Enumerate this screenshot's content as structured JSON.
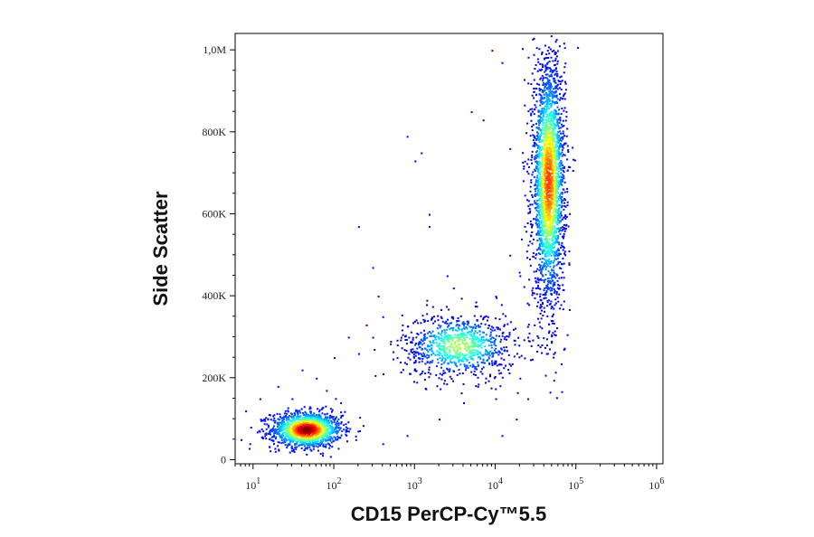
{
  "chart_data": {
    "type": "scatter",
    "title": "",
    "xlabel": "CD15 PerCP-Cy™5.5",
    "ylabel": "Side Scatter",
    "x_scale": "log",
    "x_range": [
      6,
      1200000
    ],
    "y_range": [
      -10000,
      1040000
    ],
    "x_ticks": [
      {
        "value": 10,
        "base": "10",
        "exp": "1"
      },
      {
        "value": 100,
        "base": "10",
        "exp": "2"
      },
      {
        "value": 1000,
        "base": "10",
        "exp": "3"
      },
      {
        "value": 10000,
        "base": "10",
        "exp": "4"
      },
      {
        "value": 100000,
        "base": "10",
        "exp": "5"
      },
      {
        "value": 1000000,
        "base": "10",
        "exp": "6"
      }
    ],
    "y_ticks": [
      {
        "value": 0,
        "label": "0"
      },
      {
        "value": 200000,
        "label": "200K"
      },
      {
        "value": 400000,
        "label": "400K"
      },
      {
        "value": 600000,
        "label": "600K"
      },
      {
        "value": 800000,
        "label": "800K"
      },
      {
        "value": 1000000,
        "label": "1,0M"
      }
    ],
    "colormap": "jet-density",
    "populations": [
      {
        "x_center": 45,
        "x_spread_log": 0.22,
        "y_center": 75000,
        "y_spread": 22000,
        "count": 1400
      },
      {
        "x_center": 3500,
        "x_spread_log": 0.35,
        "y_center": 280000,
        "y_spread": 40000,
        "count": 900
      },
      {
        "x_center": 45000,
        "x_spread_log": 0.1,
        "y_center": 680000,
        "y_spread": 150000,
        "count": 2600
      }
    ],
    "points": [
      [
        7,
        50000
      ],
      [
        8,
        120000
      ],
      [
        9,
        40000
      ],
      [
        12,
        150000
      ],
      [
        15,
        100000
      ],
      [
        20,
        180000
      ],
      [
        30,
        150000
      ],
      [
        40,
        220000
      ],
      [
        60,
        200000
      ],
      [
        80,
        170000
      ],
      [
        100,
        250000
      ],
      [
        120,
        140000
      ],
      [
        150,
        300000
      ],
      [
        200,
        260000
      ],
      [
        250,
        330000
      ],
      [
        300,
        300000
      ],
      [
        400,
        350000
      ],
      [
        500,
        290000
      ],
      [
        600,
        250000
      ],
      [
        700,
        330000
      ],
      [
        300,
        470000
      ],
      [
        350,
        400000
      ],
      [
        200,
        570000
      ],
      [
        800,
        790000
      ],
      [
        1000,
        730000
      ],
      [
        1200,
        750000
      ],
      [
        1500,
        570000
      ],
      [
        1500,
        600000
      ],
      [
        2500,
        450000
      ],
      [
        3000,
        420000
      ],
      [
        5000,
        850000
      ],
      [
        7000,
        830000
      ],
      [
        9000,
        1000000
      ],
      [
        12000,
        970000
      ],
      [
        15000,
        760000
      ],
      [
        20000,
        200000
      ],
      [
        18000,
        100000
      ],
      [
        10000,
        150000
      ],
      [
        25000,
        150000
      ],
      [
        12000,
        60000
      ],
      [
        400,
        40000
      ],
      [
        800,
        60000
      ],
      [
        2000,
        100000
      ],
      [
        4000,
        140000
      ],
      [
        6000,
        180000
      ],
      [
        8000,
        350000
      ],
      [
        10000,
        400000
      ],
      [
        15000,
        500000
      ],
      [
        20000,
        450000
      ],
      [
        25000,
        300000
      ]
    ]
  }
}
